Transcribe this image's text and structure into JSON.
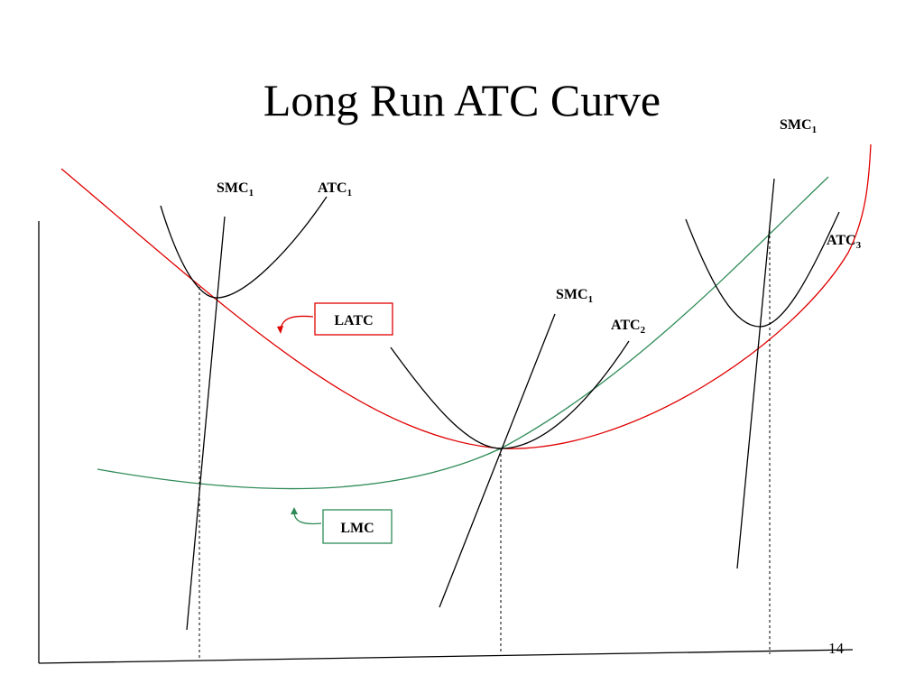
{
  "title": "Long Run ATC Curve",
  "labels": [
    {
      "text": "SMC",
      "sub": "1"
    },
    {
      "text": "ATC",
      "sub": "1"
    },
    {
      "text": "SMC",
      "sub": "1"
    },
    {
      "text": "ATC",
      "sub": "3"
    },
    {
      "text": "SMC",
      "sub": "1"
    },
    {
      "text": "ATC",
      "sub": "2"
    }
  ],
  "boxes": {
    "latc": "LATC",
    "lmc": "LMC"
  },
  "slide_number": "14"
}
